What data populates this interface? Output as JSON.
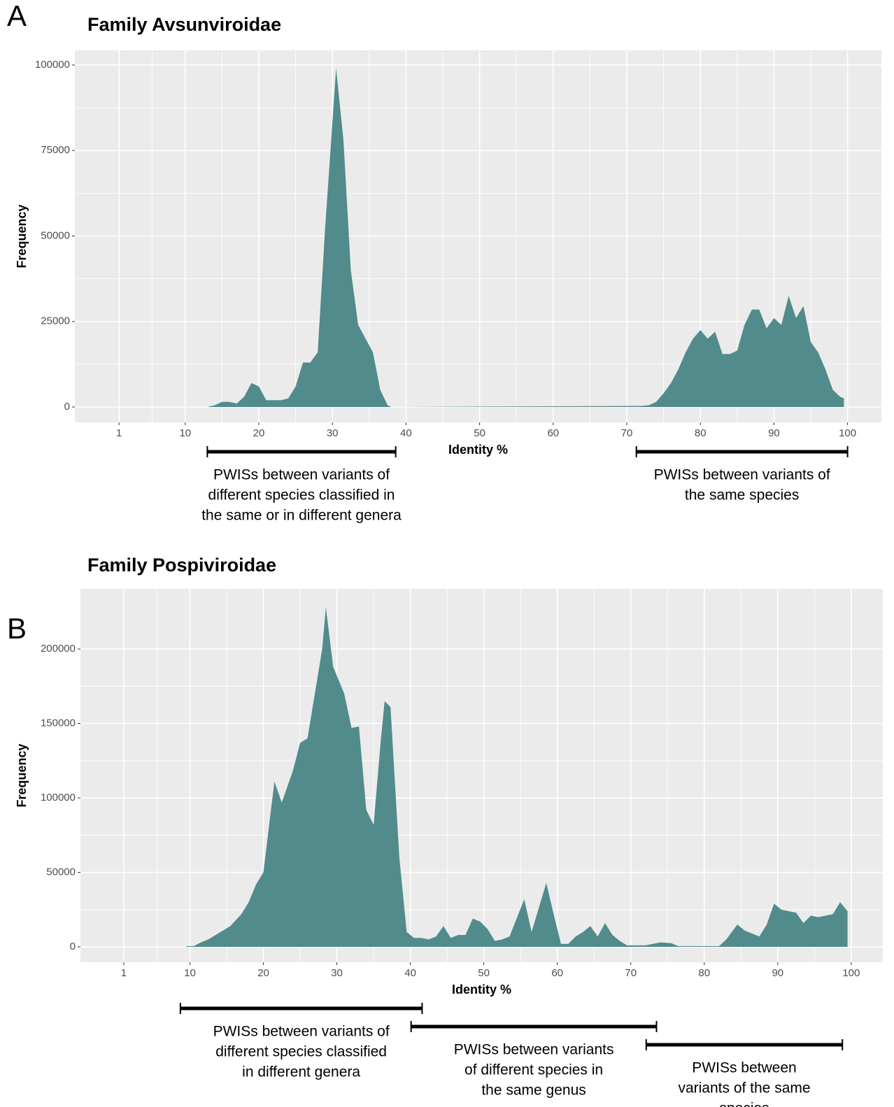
{
  "chart_data": [
    {
      "type": "area",
      "panel": "A",
      "title": "Family Avsunviroidae",
      "xlabel": "Identity %",
      "ylabel": "Frequency",
      "color": "#528b8b",
      "grid": true,
      "xlim": [
        -5,
        104.6
      ],
      "ylim": [
        -4500,
        104300
      ],
      "xticks": [
        1,
        10,
        20,
        30,
        40,
        50,
        60,
        70,
        80,
        90,
        100
      ],
      "yticks": [
        0,
        25000,
        50000,
        75000,
        100000
      ],
      "x": [
        13,
        14,
        15,
        16,
        17,
        18,
        19,
        20,
        21,
        22,
        23,
        24,
        25,
        26,
        27,
        28,
        29,
        30.5,
        31.5,
        32.5,
        33.5,
        34.5,
        35.5,
        36.5,
        37.5,
        38,
        72,
        73,
        74,
        75,
        76,
        77,
        78,
        79,
        80,
        81,
        82,
        83,
        84,
        85,
        86,
        87,
        88,
        89,
        90,
        91,
        92,
        93,
        94,
        95,
        96,
        97,
        98,
        99,
        99.5
      ],
      "values": [
        0,
        500,
        1500,
        1500,
        1000,
        3000,
        7000,
        6000,
        2000,
        2000,
        2000,
        2500,
        6000,
        13000,
        13000,
        16000,
        52000,
        99000,
        78000,
        40000,
        24000,
        20000,
        16000,
        5000,
        500,
        0,
        300,
        500,
        1500,
        4000,
        7000,
        11000,
        16000,
        20000,
        22500,
        20000,
        22000,
        15500,
        15500,
        16500,
        24000,
        28500,
        28500,
        23000,
        26000,
        24000,
        32500,
        26000,
        29500,
        19000,
        16000,
        11000,
        5000,
        3000,
        2500
      ],
      "annotations": [
        {
          "from": 13,
          "to": 38.6,
          "lines": [
            "PWISs between variants of",
            "different species  classified in",
            "the same or in different genera"
          ]
        },
        {
          "from": 71.3,
          "to": 100,
          "lines": [
            "PWISs between variants of",
            "the same species"
          ]
        }
      ]
    },
    {
      "type": "area",
      "panel": "B",
      "title": "Family Pospiviroidae",
      "xlabel": "Identity %",
      "ylabel": "Frequency",
      "color": "#528b8b",
      "grid": true,
      "xlim": [
        -4.9,
        104.3
      ],
      "ylim": [
        -10300,
        240400
      ],
      "xticks": [
        1,
        10,
        20,
        30,
        40,
        50,
        60,
        70,
        80,
        90,
        100
      ],
      "yticks": [
        0,
        50000,
        100000,
        150000,
        200000
      ],
      "x": [
        9.5,
        10.5,
        11.5,
        12.5,
        13.5,
        14.5,
        15.5,
        17,
        18,
        19,
        20,
        21.5,
        22.5,
        24,
        25,
        26,
        27,
        28,
        28.5,
        29.5,
        31,
        32,
        33,
        34,
        35,
        36,
        36.5,
        37.3,
        38.5,
        39.5,
        40.5,
        41.5,
        42.5,
        43.5,
        44.5,
        45.5,
        46.5,
        47.5,
        48.5,
        49.5,
        50.5,
        51.5,
        52.5,
        53.5,
        55.5,
        56.5,
        58.5,
        59.5,
        60.5,
        61.5,
        62.5,
        63.5,
        64.5,
        65.5,
        66.5,
        67.5,
        68.5,
        69.5,
        72,
        74,
        75.5,
        76.5,
        82,
        83,
        84.5,
        85.5,
        87.5,
        88.5,
        89.5,
        90.5,
        91.5,
        92.5,
        93.5,
        94.5,
        95.5,
        96.5,
        97.5,
        98.5,
        99.5
      ],
      "values": [
        500,
        500,
        3000,
        5000,
        8000,
        11000,
        14000,
        22000,
        30000,
        42000,
        50000,
        111000,
        97000,
        118000,
        137000,
        140000,
        170000,
        200000,
        228000,
        188000,
        170000,
        147000,
        148000,
        92000,
        82000,
        140000,
        165000,
        161000,
        60000,
        10000,
        6000,
        6000,
        5000,
        7000,
        14000,
        6000,
        8000,
        8000,
        19000,
        17000,
        12000,
        4000,
        5000,
        7000,
        32000,
        10000,
        43000,
        22000,
        2000,
        2000,
        7000,
        10000,
        14000,
        7000,
        16000,
        8000,
        4000,
        1000,
        1000,
        3000,
        2500,
        500,
        500,
        5000,
        15000,
        11000,
        7000,
        15000,
        29000,
        25000,
        24000,
        23000,
        16000,
        21000,
        20000,
        21000,
        22000,
        30000,
        24000
      ],
      "annotations": [
        {
          "from": 8.7,
          "to": 41.6,
          "lines": [
            "PWISs between variants of",
            "different species  classified",
            "in different genera"
          ]
        },
        {
          "from": 40.1,
          "to": 73.5,
          "lines": [
            "PWISs between variants",
            "of different species  in",
            "the same genus"
          ]
        },
        {
          "from": 72.1,
          "to": 98.8,
          "lines": [
            "PWISs between",
            "variants of the same",
            "species"
          ]
        }
      ]
    }
  ]
}
